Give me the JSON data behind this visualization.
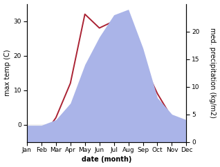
{
  "months": [
    "Jan",
    "Feb",
    "Mar",
    "Apr",
    "May",
    "Jun",
    "Jul",
    "Aug",
    "Sep",
    "Oct",
    "Nov",
    "Dec"
  ],
  "temperature": [
    -3,
    -4,
    2,
    12,
    32,
    28,
    30,
    28,
    18,
    9,
    2,
    -2
  ],
  "precipitation": [
    3,
    3,
    4,
    7,
    14,
    19,
    23,
    24,
    17,
    8,
    5,
    4
  ],
  "temp_color": "#aa2233",
  "precip_fill_color": "#aab4e8",
  "temp_ylim": [
    -5,
    35
  ],
  "precip_ylim": [
    0,
    25
  ],
  "temp_yticks": [
    0,
    10,
    20,
    30
  ],
  "precip_yticks": [
    0,
    5,
    10,
    15,
    20
  ],
  "xlabel": "date (month)",
  "ylabel_left": "max temp (C)",
  "ylabel_right": "med. precipitation (kg/m2)",
  "label_fontsize": 7,
  "tick_fontsize": 6.5,
  "background_color": "#ffffff"
}
